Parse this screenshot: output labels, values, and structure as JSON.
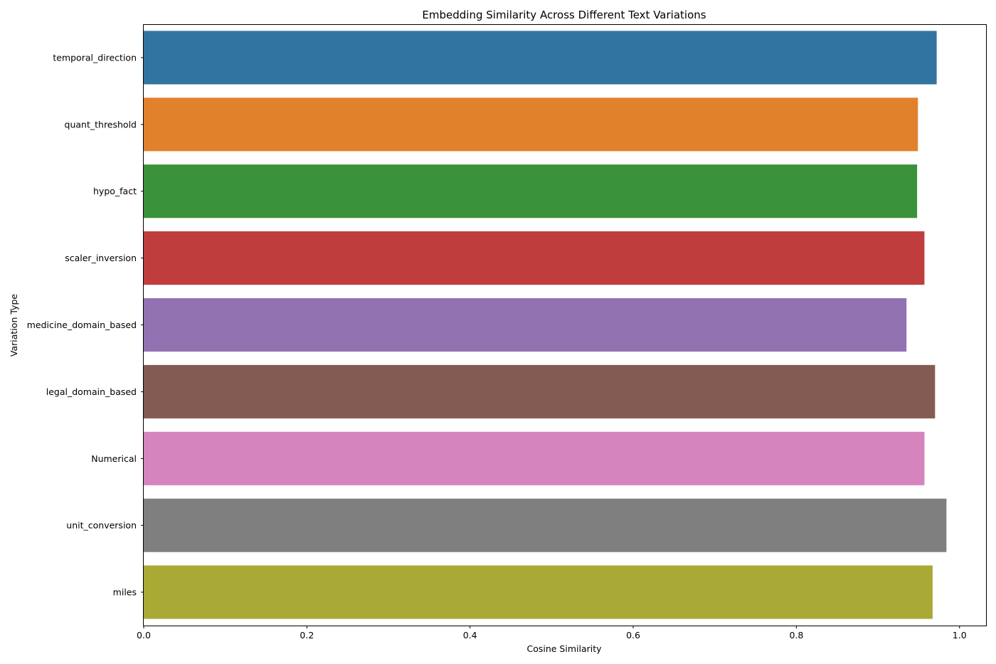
{
  "chart_data": {
    "type": "bar",
    "orientation": "horizontal",
    "title": "Embedding Similarity Across Different Text Variations",
    "xlabel": "Cosine Similarity",
    "ylabel": "Variation Type",
    "xlim": [
      0,
      1.0325
    ],
    "xticks": [
      0.0,
      0.2,
      0.4,
      0.6,
      0.8,
      1.0
    ],
    "xtick_labels": [
      "0.0",
      "0.2",
      "0.4",
      "0.6",
      "0.8",
      "1.0"
    ],
    "grid": false,
    "categories": [
      "temporal_direction",
      "quant_threshold",
      "hypo_fact",
      "scaler_inversion",
      "medicine_domain_based",
      "legal_domain_based",
      "Numerical",
      "unit_conversion",
      "miles"
    ],
    "values": [
      0.972,
      0.949,
      0.948,
      0.957,
      0.935,
      0.97,
      0.957,
      0.984,
      0.967
    ],
    "colors": [
      "#3274a1",
      "#e1812c",
      "#3a923a",
      "#c03d3e",
      "#9372b2",
      "#845b53",
      "#d684bd",
      "#7f7f7f",
      "#a9aa35"
    ]
  }
}
